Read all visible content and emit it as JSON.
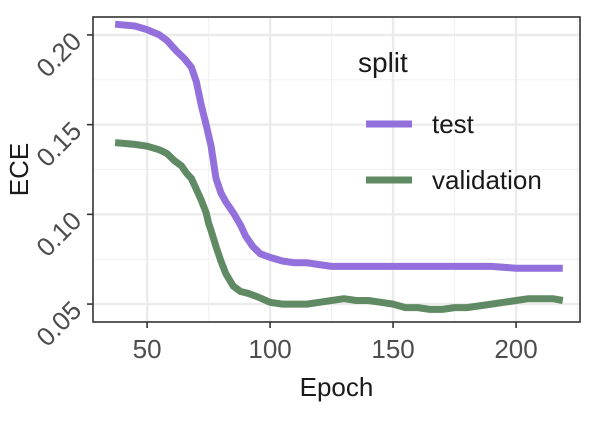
{
  "chart_data": {
    "type": "line",
    "title": "",
    "xlabel": "Epoch",
    "ylabel": "ECE",
    "xlim": [
      28,
      226
    ],
    "ylim": [
      0.04,
      0.21
    ],
    "x_ticks": [
      50,
      100,
      150,
      200
    ],
    "x_tick_labels": [
      "50",
      "100",
      "150",
      "200"
    ],
    "y_ticks": [
      0.05,
      0.1,
      0.15,
      0.2
    ],
    "y_tick_labels": [
      "0.05",
      "0.10",
      "0.15",
      "0.20"
    ],
    "grid": true,
    "legend": {
      "title": "split",
      "position": "top-right-inside"
    },
    "series": [
      {
        "name": "test",
        "color": "#9370DB",
        "points": [
          [
            37,
            0.206
          ],
          [
            45,
            0.205
          ],
          [
            50,
            0.203
          ],
          [
            55,
            0.2
          ],
          [
            58,
            0.197
          ],
          [
            62,
            0.191
          ],
          [
            65,
            0.187
          ],
          [
            68,
            0.182
          ],
          [
            70,
            0.174
          ],
          [
            72,
            0.161
          ],
          [
            74,
            0.15
          ],
          [
            76,
            0.138
          ],
          [
            78,
            0.12
          ],
          [
            80,
            0.112
          ],
          [
            82,
            0.107
          ],
          [
            85,
            0.101
          ],
          [
            88,
            0.094
          ],
          [
            90,
            0.088
          ],
          [
            93,
            0.082
          ],
          [
            96,
            0.078
          ],
          [
            100,
            0.076
          ],
          [
            105,
            0.074
          ],
          [
            110,
            0.073
          ],
          [
            115,
            0.073
          ],
          [
            120,
            0.072
          ],
          [
            125,
            0.071
          ],
          [
            130,
            0.071
          ],
          [
            140,
            0.071
          ],
          [
            150,
            0.071
          ],
          [
            160,
            0.071
          ],
          [
            170,
            0.071
          ],
          [
            180,
            0.071
          ],
          [
            190,
            0.071
          ],
          [
            200,
            0.07
          ],
          [
            210,
            0.07
          ],
          [
            219,
            0.07
          ]
        ]
      },
      {
        "name": "validation",
        "color": "#5F8A63",
        "points": [
          [
            37,
            0.14
          ],
          [
            45,
            0.139
          ],
          [
            50,
            0.138
          ],
          [
            55,
            0.136
          ],
          [
            58,
            0.134
          ],
          [
            61,
            0.13
          ],
          [
            64,
            0.127
          ],
          [
            66,
            0.123
          ],
          [
            68,
            0.12
          ],
          [
            70,
            0.114
          ],
          [
            72,
            0.108
          ],
          [
            74,
            0.101
          ],
          [
            75,
            0.095
          ],
          [
            76,
            0.091
          ],
          [
            78,
            0.082
          ],
          [
            80,
            0.074
          ],
          [
            82,
            0.067
          ],
          [
            85,
            0.06
          ],
          [
            88,
            0.057
          ],
          [
            91,
            0.056
          ],
          [
            95,
            0.054
          ],
          [
            100,
            0.051
          ],
          [
            105,
            0.05
          ],
          [
            110,
            0.05
          ],
          [
            115,
            0.05
          ],
          [
            120,
            0.051
          ],
          [
            125,
            0.052
          ],
          [
            130,
            0.053
          ],
          [
            135,
            0.052
          ],
          [
            140,
            0.052
          ],
          [
            145,
            0.051
          ],
          [
            150,
            0.05
          ],
          [
            155,
            0.048
          ],
          [
            160,
            0.048
          ],
          [
            165,
            0.047
          ],
          [
            170,
            0.047
          ],
          [
            175,
            0.048
          ],
          [
            180,
            0.048
          ],
          [
            185,
            0.049
          ],
          [
            190,
            0.05
          ],
          [
            195,
            0.051
          ],
          [
            200,
            0.052
          ],
          [
            205,
            0.053
          ],
          [
            210,
            0.053
          ],
          [
            215,
            0.053
          ],
          [
            219,
            0.052
          ]
        ]
      }
    ]
  }
}
